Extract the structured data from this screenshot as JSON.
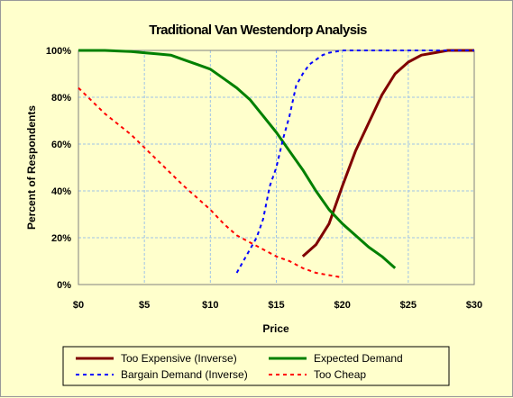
{
  "chart_data": {
    "type": "line",
    "title": "Traditional Van Westendorp Analysis",
    "xlabel": "Price",
    "ylabel": "Percent of Respondents",
    "xlim": [
      0,
      30
    ],
    "ylim": [
      0,
      100
    ],
    "x_ticks": [
      "$0",
      "$5",
      "$10",
      "$15",
      "$20",
      "$25",
      "$30"
    ],
    "y_ticks": [
      "0%",
      "20%",
      "40%",
      "60%",
      "80%",
      "100%"
    ],
    "grid": true,
    "legend_position": "bottom",
    "series": [
      {
        "name": "Too Expensive (Inverse)",
        "color": "#800000",
        "style": "solid",
        "points": [
          [
            17,
            12
          ],
          [
            18,
            17
          ],
          [
            19,
            26
          ],
          [
            20,
            42
          ],
          [
            21,
            57
          ],
          [
            22,
            69
          ],
          [
            23,
            81
          ],
          [
            24,
            90
          ],
          [
            25,
            95
          ],
          [
            26,
            98
          ],
          [
            27,
            99
          ],
          [
            28,
            100
          ],
          [
            29,
            100
          ],
          [
            30,
            100
          ]
        ]
      },
      {
        "name": "Expected Demand",
        "color": "#008000",
        "style": "solid",
        "points": [
          [
            0,
            100
          ],
          [
            2,
            100
          ],
          [
            4,
            99.5
          ],
          [
            5,
            99
          ],
          [
            6,
            98.5
          ],
          [
            7,
            98
          ],
          [
            8,
            96
          ],
          [
            9,
            94
          ],
          [
            10,
            92
          ],
          [
            11,
            88
          ],
          [
            12,
            84
          ],
          [
            13,
            79
          ],
          [
            14,
            72
          ],
          [
            15,
            65
          ],
          [
            16,
            57
          ],
          [
            17,
            49
          ],
          [
            18,
            40
          ],
          [
            19,
            32
          ],
          [
            20,
            26
          ],
          [
            21,
            21
          ],
          [
            22,
            16
          ],
          [
            23,
            12
          ],
          [
            24,
            7
          ]
        ]
      },
      {
        "name": "Bargain Demand (Inverse)",
        "color": "#0000ff",
        "style": "dashed",
        "points": [
          [
            12,
            5
          ],
          [
            13,
            15
          ],
          [
            13.5,
            20
          ],
          [
            14,
            28
          ],
          [
            14.5,
            42
          ],
          [
            15,
            50
          ],
          [
            15.5,
            62
          ],
          [
            16,
            72
          ],
          [
            16.5,
            85
          ],
          [
            17,
            90
          ],
          [
            17.5,
            94
          ],
          [
            18,
            96
          ],
          [
            18.5,
            98
          ],
          [
            19,
            99
          ],
          [
            20,
            100
          ],
          [
            22,
            100
          ],
          [
            25,
            100
          ],
          [
            30,
            100
          ]
        ]
      },
      {
        "name": "Too Cheap",
        "color": "#ff0000",
        "style": "dashed",
        "points": [
          [
            0,
            84
          ],
          [
            2,
            73
          ],
          [
            4,
            64
          ],
          [
            6,
            53
          ],
          [
            8,
            42
          ],
          [
            10,
            32
          ],
          [
            11,
            26
          ],
          [
            12,
            21
          ],
          [
            13,
            18
          ],
          [
            14,
            15
          ],
          [
            15,
            12
          ],
          [
            16,
            10
          ],
          [
            17,
            7
          ],
          [
            18,
            5
          ],
          [
            19,
            4
          ],
          [
            20,
            3
          ]
        ]
      }
    ]
  }
}
